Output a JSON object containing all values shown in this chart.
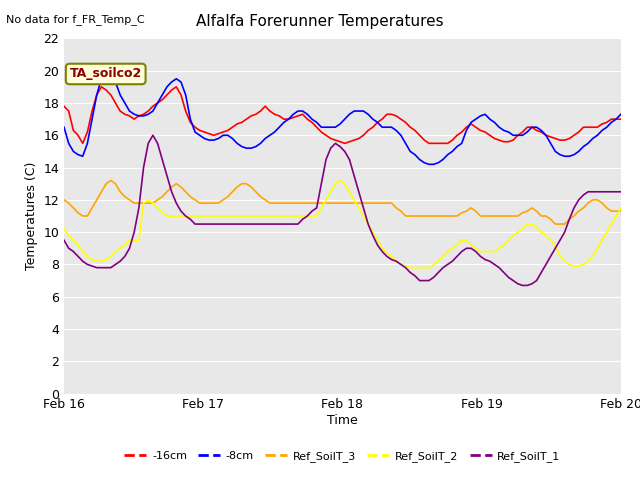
{
  "title": "Alfalfa Forerunner Temperatures",
  "top_left_text": "No data for f_FR_Temp_C",
  "box_label": "TA_soilco2",
  "ylabel": "Temperatures (C)",
  "xlabel": "Time",
  "ylim": [
    0,
    22
  ],
  "yticks": [
    0,
    2,
    4,
    6,
    8,
    10,
    12,
    14,
    16,
    18,
    20,
    22
  ],
  "xtick_labels": [
    "Feb 16",
    "Feb 17",
    "Feb 18",
    "Feb 19",
    "Feb 20"
  ],
  "bg_color": "#e8e8e8",
  "plot_bg_color": "#e8e8e8",
  "line_colors": {
    "red": "#ff0000",
    "blue": "#0000ff",
    "orange": "#ffa500",
    "yellow": "#ffff00",
    "purple": "#800080"
  },
  "legend_labels": [
    "-16cm",
    "-8cm",
    "Ref_SoilT_3",
    "Ref_SoilT_2",
    "Ref_SoilT_1"
  ],
  "n_points": 120,
  "x_start": 0,
  "x_end": 4.0,
  "xtick_positions": [
    0.0,
    1.0,
    2.0,
    3.0,
    4.0
  ],
  "red_y": [
    17.8,
    17.5,
    16.3,
    16.0,
    15.5,
    16.2,
    17.5,
    18.5,
    19.0,
    18.8,
    18.5,
    18.0,
    17.5,
    17.3,
    17.2,
    17.0,
    17.2,
    17.3,
    17.5,
    17.8,
    18.0,
    18.2,
    18.5,
    18.8,
    19.0,
    18.5,
    17.5,
    16.8,
    16.5,
    16.3,
    16.2,
    16.1,
    16.0,
    16.1,
    16.2,
    16.3,
    16.5,
    16.7,
    16.8,
    17.0,
    17.2,
    17.3,
    17.5,
    17.8,
    17.5,
    17.3,
    17.2,
    17.0,
    17.0,
    17.1,
    17.2,
    17.3,
    17.0,
    16.8,
    16.5,
    16.2,
    16.0,
    15.8,
    15.7,
    15.6,
    15.5,
    15.6,
    15.7,
    15.8,
    16.0,
    16.3,
    16.5,
    16.8,
    17.0,
    17.3,
    17.3,
    17.2,
    17.0,
    16.8,
    16.5,
    16.3,
    16.0,
    15.7,
    15.5,
    15.5,
    15.5,
    15.5,
    15.5,
    15.7,
    16.0,
    16.2,
    16.5,
    16.7,
    16.5,
    16.3,
    16.2,
    16.0,
    15.8,
    15.7,
    15.6,
    15.6,
    15.7,
    16.0,
    16.2,
    16.5,
    16.5,
    16.3,
    16.2,
    16.0,
    15.9,
    15.8,
    15.7,
    15.7,
    15.8,
    16.0,
    16.2,
    16.5,
    16.5,
    16.5,
    16.5,
    16.7,
    16.8,
    17.0,
    17.0,
    17.0
  ],
  "blue_y": [
    16.5,
    15.5,
    15.0,
    14.8,
    14.7,
    15.5,
    17.0,
    18.5,
    19.5,
    20.0,
    19.8,
    19.3,
    18.5,
    18.0,
    17.5,
    17.3,
    17.2,
    17.2,
    17.3,
    17.5,
    18.0,
    18.5,
    19.0,
    19.3,
    19.5,
    19.3,
    18.5,
    17.0,
    16.2,
    16.0,
    15.8,
    15.7,
    15.7,
    15.8,
    16.0,
    16.0,
    15.8,
    15.5,
    15.3,
    15.2,
    15.2,
    15.3,
    15.5,
    15.8,
    16.0,
    16.2,
    16.5,
    16.8,
    17.0,
    17.3,
    17.5,
    17.5,
    17.3,
    17.0,
    16.8,
    16.5,
    16.5,
    16.5,
    16.5,
    16.7,
    17.0,
    17.3,
    17.5,
    17.5,
    17.5,
    17.3,
    17.0,
    16.8,
    16.5,
    16.5,
    16.5,
    16.3,
    16.0,
    15.5,
    15.0,
    14.8,
    14.5,
    14.3,
    14.2,
    14.2,
    14.3,
    14.5,
    14.8,
    15.0,
    15.3,
    15.5,
    16.3,
    16.8,
    17.0,
    17.2,
    17.3,
    17.0,
    16.8,
    16.5,
    16.3,
    16.2,
    16.0,
    16.0,
    16.0,
    16.2,
    16.5,
    16.5,
    16.3,
    16.0,
    15.5,
    15.0,
    14.8,
    14.7,
    14.7,
    14.8,
    15.0,
    15.3,
    15.5,
    15.8,
    16.0,
    16.3,
    16.5,
    16.8,
    17.0,
    17.3
  ],
  "orange_y": [
    12.0,
    11.8,
    11.5,
    11.2,
    11.0,
    11.0,
    11.5,
    12.0,
    12.5,
    13.0,
    13.2,
    13.0,
    12.5,
    12.2,
    12.0,
    11.8,
    11.8,
    11.8,
    11.8,
    11.8,
    12.0,
    12.2,
    12.5,
    12.8,
    13.0,
    12.8,
    12.5,
    12.2,
    12.0,
    11.8,
    11.8,
    11.8,
    11.8,
    11.8,
    12.0,
    12.2,
    12.5,
    12.8,
    13.0,
    13.0,
    12.8,
    12.5,
    12.2,
    12.0,
    11.8,
    11.8,
    11.8,
    11.8,
    11.8,
    11.8,
    11.8,
    11.8,
    11.8,
    11.8,
    11.8,
    11.8,
    11.8,
    11.8,
    11.8,
    11.8,
    11.8,
    11.8,
    11.8,
    11.8,
    11.8,
    11.8,
    11.8,
    11.8,
    11.8,
    11.8,
    11.8,
    11.5,
    11.3,
    11.0,
    11.0,
    11.0,
    11.0,
    11.0,
    11.0,
    11.0,
    11.0,
    11.0,
    11.0,
    11.0,
    11.0,
    11.2,
    11.3,
    11.5,
    11.3,
    11.0,
    11.0,
    11.0,
    11.0,
    11.0,
    11.0,
    11.0,
    11.0,
    11.0,
    11.2,
    11.3,
    11.5,
    11.3,
    11.0,
    11.0,
    10.8,
    10.5,
    10.5,
    10.5,
    10.8,
    11.0,
    11.3,
    11.5,
    11.8,
    12.0,
    12.0,
    11.8,
    11.5,
    11.3,
    11.3,
    11.3
  ],
  "yellow_y": [
    10.2,
    9.8,
    9.5,
    9.2,
    8.8,
    8.5,
    8.3,
    8.2,
    8.2,
    8.3,
    8.5,
    8.8,
    9.0,
    9.2,
    9.5,
    9.5,
    9.5,
    11.8,
    12.0,
    11.8,
    11.5,
    11.2,
    11.0,
    11.0,
    11.0,
    11.0,
    11.0,
    11.0,
    11.0,
    11.0,
    11.0,
    11.0,
    11.0,
    11.0,
    11.0,
    11.0,
    11.0,
    11.0,
    11.0,
    11.0,
    11.0,
    11.0,
    11.0,
    11.0,
    11.0,
    11.0,
    11.0,
    11.0,
    11.0,
    11.0,
    11.0,
    11.0,
    11.0,
    11.0,
    11.0,
    11.5,
    12.0,
    12.5,
    13.0,
    13.2,
    13.0,
    12.5,
    12.0,
    11.5,
    11.0,
    10.5,
    10.0,
    9.5,
    9.0,
    8.7,
    8.5,
    8.2,
    8.0,
    7.9,
    7.8,
    7.8,
    7.8,
    7.8,
    7.8,
    8.0,
    8.2,
    8.5,
    8.8,
    9.0,
    9.2,
    9.5,
    9.5,
    9.2,
    9.0,
    8.8,
    8.8,
    8.8,
    8.8,
    9.0,
    9.2,
    9.5,
    9.8,
    10.0,
    10.2,
    10.5,
    10.5,
    10.3,
    10.0,
    9.8,
    9.5,
    9.2,
    8.5,
    8.2,
    8.0,
    7.9,
    7.9,
    8.0,
    8.2,
    8.5,
    9.0,
    9.5,
    10.0,
    10.5,
    11.0,
    11.5
  ],
  "purple_y": [
    9.5,
    9.0,
    8.8,
    8.5,
    8.2,
    8.0,
    7.9,
    7.8,
    7.8,
    7.8,
    7.8,
    8.0,
    8.2,
    8.5,
    9.0,
    10.0,
    11.5,
    14.0,
    15.5,
    16.0,
    15.5,
    14.5,
    13.5,
    12.5,
    11.8,
    11.3,
    11.0,
    10.8,
    10.5,
    10.5,
    10.5,
    10.5,
    10.5,
    10.5,
    10.5,
    10.5,
    10.5,
    10.5,
    10.5,
    10.5,
    10.5,
    10.5,
    10.5,
    10.5,
    10.5,
    10.5,
    10.5,
    10.5,
    10.5,
    10.5,
    10.5,
    10.8,
    11.0,
    11.3,
    11.5,
    13.0,
    14.5,
    15.2,
    15.5,
    15.3,
    15.0,
    14.5,
    13.5,
    12.5,
    11.5,
    10.5,
    9.8,
    9.2,
    8.8,
    8.5,
    8.3,
    8.2,
    8.0,
    7.8,
    7.5,
    7.3,
    7.0,
    7.0,
    7.0,
    7.2,
    7.5,
    7.8,
    8.0,
    8.2,
    8.5,
    8.8,
    9.0,
    9.0,
    8.8,
    8.5,
    8.3,
    8.2,
    8.0,
    7.8,
    7.5,
    7.2,
    7.0,
    6.8,
    6.7,
    6.7,
    6.8,
    7.0,
    7.5,
    8.0,
    8.5,
    9.0,
    9.5,
    10.0,
    10.8,
    11.5,
    12.0,
    12.3,
    12.5,
    12.5,
    12.5,
    12.5,
    12.5,
    12.5,
    12.5,
    12.5
  ]
}
